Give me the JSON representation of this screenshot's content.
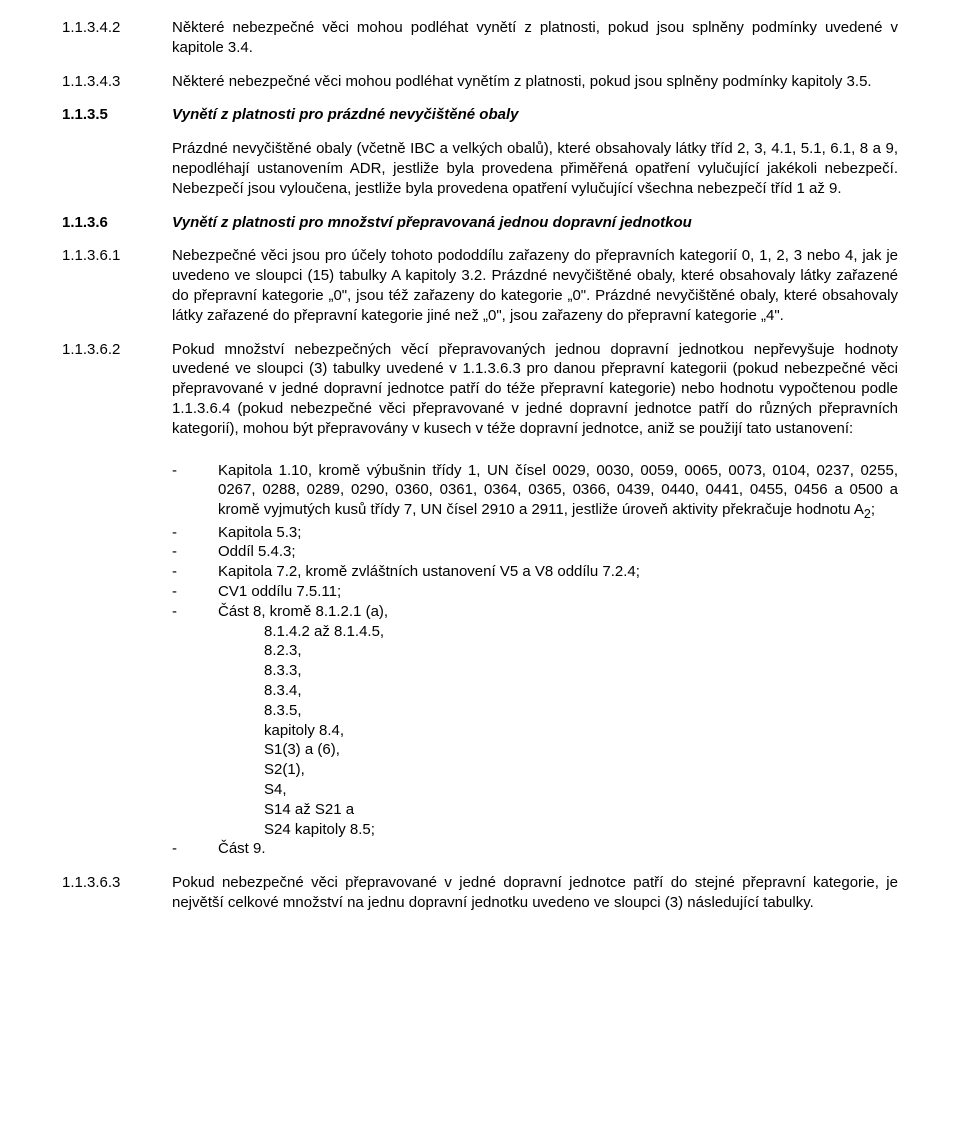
{
  "s1": {
    "num": "1.1.3.4.2",
    "txt": "Některé nebezpečné věci mohou podléhat vynětí z platnosti, pokud jsou splněny podmínky uvedené v kapitole 3.4."
  },
  "s2": {
    "num": "1.1.3.4.3",
    "txt": "Některé nebezpečné věci mohou podléhat vynětím z platnosti, pokud jsou splněny podmínky kapitoly 3.5."
  },
  "s3": {
    "num": "1.1.3.5",
    "title": "Vynětí z platnosti pro prázdné nevyčištěné obaly",
    "p": "Prázdné nevyčištěné obaly (včetně IBC a velkých obalů), které obsahovaly látky tříd 2, 3, 4.1, 5.1, 6.1, 8 a 9, nepodléhají ustanovením ADR, jestliže byla provedena přiměřená opatření vylučující jakékoli nebezpečí. Nebezpečí jsou vyloučena, jestliže byla provedena opatření vylučující všechna nebezpečí tříd 1 až 9."
  },
  "s4": {
    "num": "1.1.3.6",
    "title": "Vynětí z platnosti pro množství přepravovaná jednou dopravní jednotkou"
  },
  "s5": {
    "num": "1.1.3.6.1",
    "txt": "Nebezpečné věci jsou pro účely tohoto pododdílu zařazeny do přepravních kategorií  0, 1, 2, 3 nebo 4, jak je uvedeno ve sloupci (15) tabulky A kapitoly 3.2. Prázdné nevyčištěné obaly, které obsahovaly látky zařazené do přepravní kategorie „0\", jsou též zařazeny do kategorie „0\". Prázdné nevyčištěné obaly, které obsahovaly látky zařazené do přepravní kategorie jiné než „0\", jsou zařazeny do přepravní kategorie „4\"."
  },
  "s6": {
    "num": "1.1.3.6.2",
    "txt": "Pokud množství nebezpečných věcí přepravovaných jednou dopravní jednotkou nepřevyšuje hodnoty uvedené ve sloupci (3) tabulky uvedené v 1.1.3.6.3 pro danou přepravní kategorii (pokud nebezpečné věci přepravované v jedné dopravní jednotce patří do téže přepravní kategorie) nebo hodnotu vypočtenou podle 1.1.3.6.4 (pokud nebezpečné věci přepravované v jedné dopravní jednotce patří do různých přepravních kategorií), mohou být přepravovány v kusech v téže  dopravní jednotce, aniž se použijí tato ustanovení:"
  },
  "list": {
    "i1a": "Kapitola 1.10, kromě výbušnin třídy 1, UN čísel 0029, 0030, 0059, 0065, 0073, 0104, 0237, 0255, 0267, 0288, 0289, 0290, 0360, 0361, 0364, 0365, 0366, 0439, 0440, 0441, 0455, 0456 a 0500 a kromě vyjmutých kusů třídy 7, UN čísel 2910 a 2911, jestliže úroveň aktivity překračuje hodnotu A",
    "i1b": ";",
    "i2": "Kapitola 5.3;",
    "i3": "Oddíl 5.4.3;",
    "i4": "Kapitola 7.2, kromě zvláštních ustanovení V5 a V8 oddílu 7.2.4;",
    "i5": "CV1 oddílu 7.5.11;",
    "i6": "Část 8, kromě  8.1.2.1 (a),",
    "sub1": "8.1.4.2 až 8.1.4.5,",
    "sub2": "8.2.3,",
    "sub3": "8.3.3,",
    "sub4": "8.3.4,",
    "sub5": "8.3.5,",
    "sub6": "kapitoly 8.4,",
    "sub7": "S1(3) a (6),",
    "sub8": "S2(1),",
    "sub9": "S4,",
    "sub10": "S14 až S21 a",
    "sub11": "S24 kapitoly 8.5;",
    "i7": "Část 9."
  },
  "s7": {
    "num": "1.1.3.6.3",
    "txt": "Pokud nebezpečné věci přepravované v jedné dopravní jednotce patří do stejné přepravní kategorie, je největší celkové množství na jednu dopravní jednotku uvedeno ve sloupci (3) následující tabulky."
  },
  "dash": "-",
  "sub2": "2"
}
